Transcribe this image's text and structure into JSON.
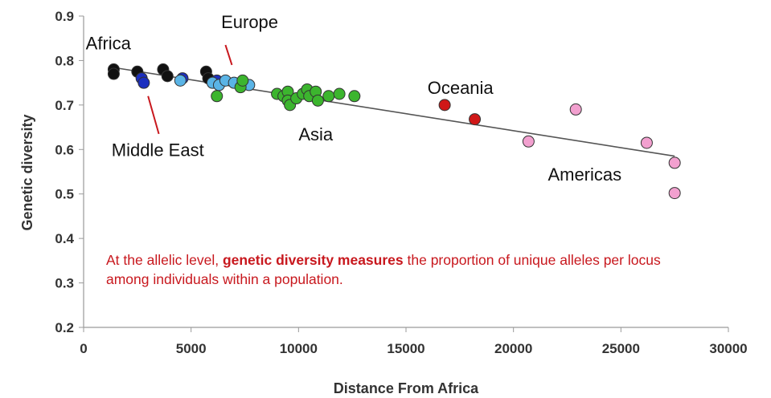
{
  "chart_data": {
    "type": "scatter",
    "xlabel": "Distance From Africa",
    "ylabel": "Genetic diversity",
    "xlim": [
      0,
      30000
    ],
    "ylim": [
      0.2,
      0.9
    ],
    "x_ticks": [
      "0",
      "5000",
      "10000",
      "15000",
      "20000",
      "25000",
      "30000"
    ],
    "y_ticks": [
      "0.2",
      "0.3",
      "0.4",
      "0.5",
      "0.6",
      "0.7",
      "0.8",
      "0.9"
    ],
    "grid": false,
    "trendline": {
      "x": [
        1300,
        27500
      ],
      "y": [
        0.785,
        0.585
      ]
    },
    "series": [
      {
        "name": "Africa",
        "color": "#111111",
        "points": [
          [
            1400,
            0.78
          ],
          [
            1400,
            0.77
          ],
          [
            2500,
            0.775
          ],
          [
            3700,
            0.78
          ],
          [
            3900,
            0.765
          ],
          [
            5700,
            0.775
          ],
          [
            5800,
            0.76
          ]
        ]
      },
      {
        "name": "Middle East",
        "color": "#1c2fbf",
        "points": [
          [
            2700,
            0.76
          ],
          [
            2800,
            0.75
          ],
          [
            4600,
            0.76
          ],
          [
            6200,
            0.755
          ]
        ]
      },
      {
        "name": "Europe",
        "color": "#5ab4e6",
        "points": [
          [
            4500,
            0.755
          ],
          [
            6000,
            0.75
          ],
          [
            6300,
            0.745
          ],
          [
            6600,
            0.755
          ],
          [
            7000,
            0.75
          ],
          [
            7700,
            0.745
          ]
        ]
      },
      {
        "name": "Asia",
        "color": "#3cb52e",
        "points": [
          [
            6200,
            0.72
          ],
          [
            7300,
            0.74
          ],
          [
            7400,
            0.755
          ],
          [
            9000,
            0.725
          ],
          [
            9300,
            0.72
          ],
          [
            9500,
            0.73
          ],
          [
            9500,
            0.71
          ],
          [
            9600,
            0.7
          ],
          [
            9900,
            0.715
          ],
          [
            10200,
            0.725
          ],
          [
            10400,
            0.735
          ],
          [
            10500,
            0.72
          ],
          [
            10800,
            0.73
          ],
          [
            10900,
            0.71
          ],
          [
            11400,
            0.72
          ],
          [
            11900,
            0.725
          ],
          [
            12600,
            0.72
          ]
        ]
      },
      {
        "name": "Oceania",
        "color": "#d01818",
        "points": [
          [
            16800,
            0.7
          ],
          [
            18200,
            0.668
          ]
        ]
      },
      {
        "name": "Americas",
        "color": "#f2a0cf",
        "points": [
          [
            20700,
            0.618
          ],
          [
            22900,
            0.69
          ],
          [
            26200,
            0.615
          ],
          [
            27500,
            0.57
          ],
          [
            27500,
            0.502
          ]
        ]
      }
    ],
    "region_labels": [
      {
        "text": "Africa",
        "x": 100,
        "y": 0.825
      },
      {
        "text": "Europe",
        "x": 6400,
        "y": 0.873
      },
      {
        "text": "Middle East",
        "x": 1300,
        "y": 0.585
      },
      {
        "text": "Asia",
        "x": 10000,
        "y": 0.62
      },
      {
        "text": "Oceania",
        "x": 16000,
        "y": 0.725
      },
      {
        "text": "Americas",
        "x": 21600,
        "y": 0.53
      }
    ],
    "pointer_lines": [
      {
        "from": [
          6600,
          0.835
        ],
        "to": [
          6900,
          0.79
        ]
      },
      {
        "from": [
          3000,
          0.72
        ],
        "to": [
          3500,
          0.635
        ]
      }
    ]
  },
  "note": {
    "part1": "At the allelic level, ",
    "bold": "genetic diversity measures",
    "part2": " the proportion of unique alleles per locus among individuals within a population."
  }
}
